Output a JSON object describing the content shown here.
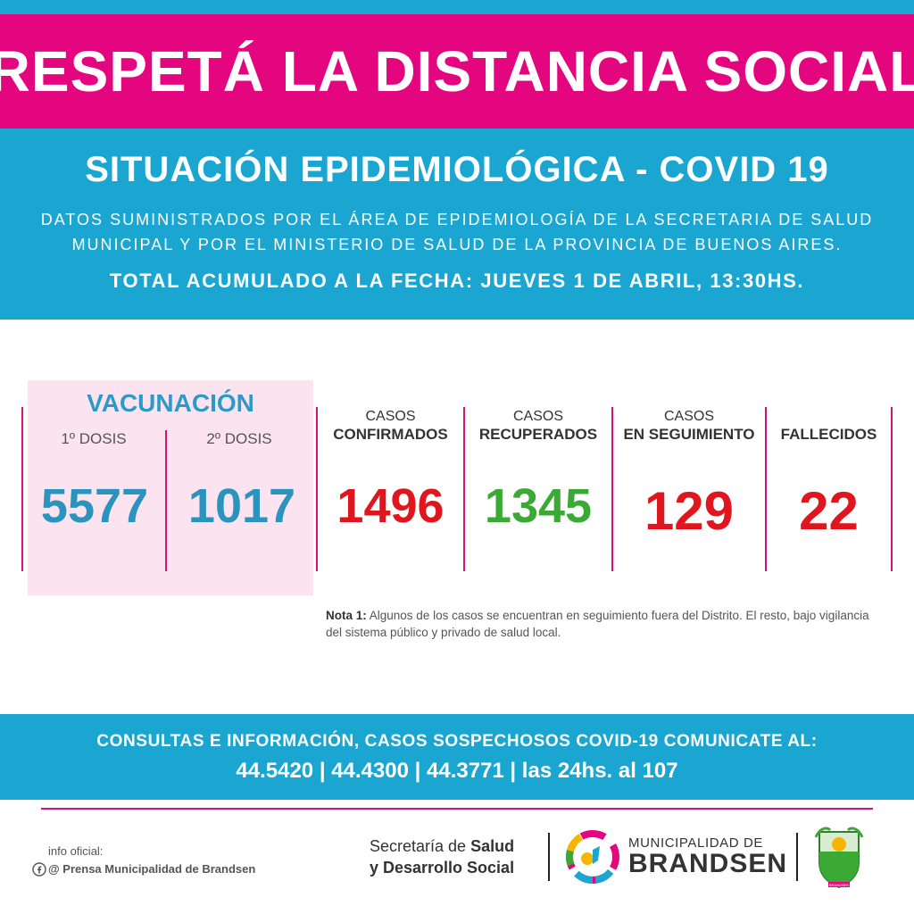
{
  "banner": {
    "title": "RESPETÁ LA DISTANCIA SOCIAL"
  },
  "header": {
    "subtitle": "SITUACIÓN EPIDEMIOLÓGICA - COVID 19",
    "source_line1": "DATOS SUMINISTRADOS POR EL ÁREA DE EPIDEMIOLOGÍA DE LA SECRETARIA DE SALUD",
    "source_line2": "MUNICIPAL Y POR EL MINISTERIO DE SALUD DE LA PROVINCIA DE BUENOS AIRES.",
    "total": "TOTAL ACUMULADO A LA FECHA: JUEVES 1 DE ABRIL, 13:30HS."
  },
  "vaccination": {
    "title": "VACUNACIÓN",
    "dose1_label": "1º DOSIS",
    "dose1_value": "5577",
    "dose2_label": "2º DOSIS",
    "dose2_value": "1017"
  },
  "stats": {
    "confirmed": {
      "label_top": "CASOS",
      "label_bottom": "CONFIRMADOS",
      "value": "1496"
    },
    "recovered": {
      "label_top": "CASOS",
      "label_bottom": "RECUPERADOS",
      "value": "1345"
    },
    "tracking": {
      "label_top": "CASOS",
      "label_bottom": "EN SEGUIMIENTO",
      "value": "129"
    },
    "deceased": {
      "label_top": "",
      "label_bottom": "FALLECIDOS",
      "value": "22"
    }
  },
  "note": {
    "label": "Nota 1:",
    "text": " Algunos de los casos se encuentran en seguimiento fuera del Distrito. El resto, bajo vigilancia del sistema público y privado de salud local."
  },
  "contact": {
    "line1": "CONSULTAS E INFORMACIÓN, CASOS SOSPECHOSOS COVID-19 COMUNICATE AL:",
    "line2": "44.5420 | 44.4300 | 44.3771 | las 24hs. al 107"
  },
  "footer": {
    "info_label": "info oficial:",
    "info_handle": "@ Prensa Municipalidad de Brandsen",
    "secretaria_prefix": "Secretaría de ",
    "secretaria_bold1": "Salud",
    "secretaria_bold2": "y Desarrollo Social",
    "municipalidad_top": "MUNICIPALIDAD DE",
    "municipalidad_big": "BRANDSEN",
    "shield_caption": "BRANDSEN"
  },
  "colors": {
    "pink": "#e4067e",
    "cyan": "#1aa6d1",
    "blue_number": "#2a93be",
    "red_number": "#e0161e",
    "green_number": "#3aaa35"
  },
  "icons": [
    "facebook-icon",
    "municipal-logo-icon",
    "shield-emblem-icon"
  ]
}
